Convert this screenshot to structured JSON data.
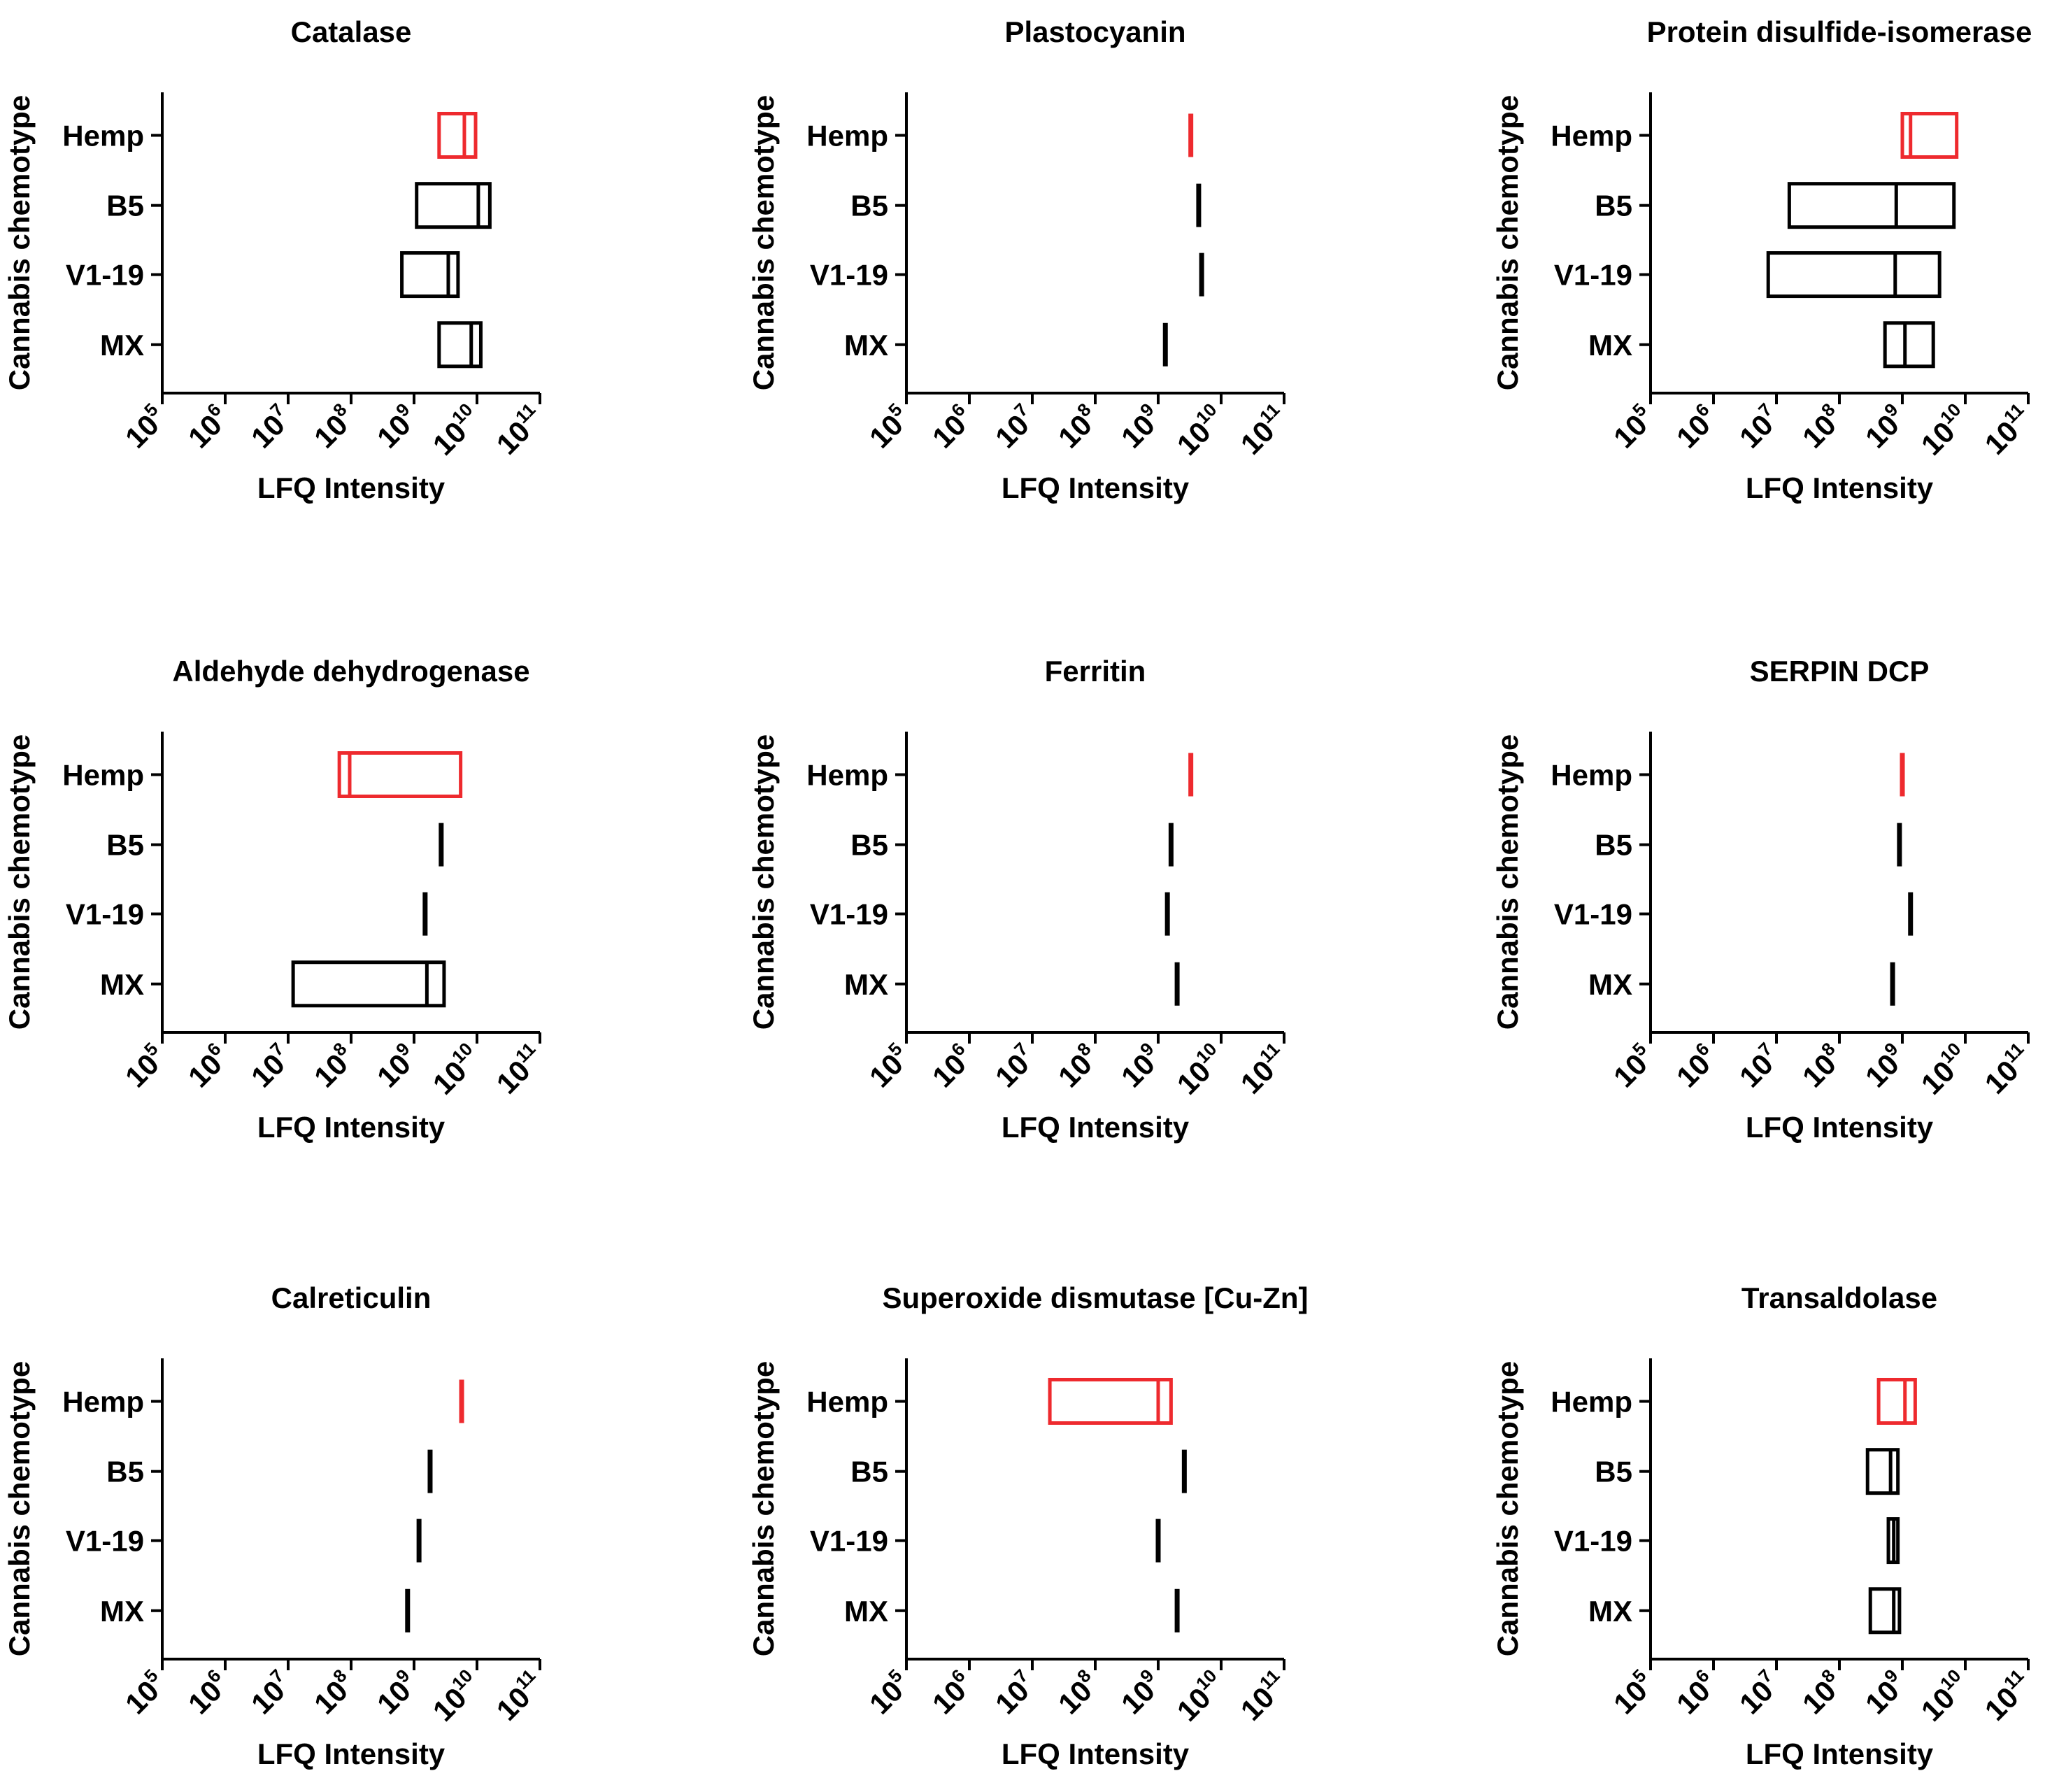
{
  "figure": {
    "x_axis_label": "LFQ Intensity",
    "y_axis_label": "Cannabis chemotype",
    "categories": [
      "Hemp",
      "B5",
      "V1-19",
      "MX"
    ],
    "tick_base": "10",
    "tick_exponents": [
      "5",
      "6",
      "7",
      "8",
      "9",
      "10",
      "11"
    ],
    "colors": {
      "Hemp": "#ee2a2e",
      "other": "#000000"
    }
  },
  "chart_data": [
    {
      "type": "box",
      "title": "Catalase",
      "xscale": "log",
      "xlim": [
        100000,
        100000000000
      ],
      "xlabel": "LFQ Intensity",
      "ylabel": "Cannabis chemotype",
      "categories": [
        "Hemp",
        "B5",
        "V1-19",
        "MX"
      ],
      "boxes": [
        {
          "category": "Hemp",
          "min": 2500000000,
          "median": 6300000000,
          "max": 9500000000
        },
        {
          "category": "B5",
          "min": 1100000000,
          "median": 10500000000,
          "max": 16000000000
        },
        {
          "category": "V1-19",
          "min": 640000000,
          "median": 3500000000,
          "max": 5000000000
        },
        {
          "category": "MX",
          "min": 2500000000,
          "median": 8100000000,
          "max": 11500000000
        }
      ]
    },
    {
      "type": "box",
      "title": "Plastocyanin",
      "xscale": "log",
      "xlim": [
        100000,
        100000000000
      ],
      "xlabel": "LFQ Intensity",
      "ylabel": "Cannabis chemotype",
      "categories": [
        "Hemp",
        "B5",
        "V1-19",
        "MX"
      ],
      "boxes": [
        {
          "category": "Hemp",
          "min": 3300000000,
          "median": 3300000000,
          "max": 3300000000
        },
        {
          "category": "B5",
          "min": 4400000000,
          "median": 4400000000,
          "max": 4400000000
        },
        {
          "category": "V1-19",
          "min": 4900000000,
          "median": 4900000000,
          "max": 4900000000
        },
        {
          "category": "MX",
          "min": 1300000000,
          "median": 1300000000,
          "max": 1300000000
        }
      ]
    },
    {
      "type": "box",
      "title": "Protein disulfide-isomerase",
      "xscale": "log",
      "xlim": [
        100000,
        100000000000
      ],
      "xlabel": "LFQ Intensity",
      "ylabel": "Cannabis chemotype",
      "categories": [
        "Hemp",
        "B5",
        "V1-19",
        "MX"
      ],
      "boxes": [
        {
          "category": "Hemp",
          "min": 1000000000,
          "median": 1350000000,
          "max": 7300000000
        },
        {
          "category": "B5",
          "min": 16000000,
          "median": 800000000,
          "max": 6600000000
        },
        {
          "category": "V1-19",
          "min": 7400000,
          "median": 770000000,
          "max": 3900000000
        },
        {
          "category": "MX",
          "min": 530000000,
          "median": 1100000000,
          "max": 3100000000
        }
      ]
    },
    {
      "type": "box",
      "title": "Aldehyde dehydrogenase",
      "xscale": "log",
      "xlim": [
        100000,
        100000000000
      ],
      "xlabel": "LFQ Intensity",
      "ylabel": "Cannabis chemotype",
      "categories": [
        "Hemp",
        "B5",
        "V1-19",
        "MX"
      ],
      "boxes": [
        {
          "category": "Hemp",
          "min": 65000000,
          "median": 95000000,
          "max": 5500000000
        },
        {
          "category": "B5",
          "min": 2700000000,
          "median": 2700000000,
          "max": 2700000000
        },
        {
          "category": "V1-19",
          "min": 1500000000,
          "median": 1500000000,
          "max": 1500000000
        },
        {
          "category": "MX",
          "min": 12000000,
          "median": 1600000000,
          "max": 3000000000
        }
      ]
    },
    {
      "type": "box",
      "title": "Ferritin",
      "xscale": "log",
      "xlim": [
        100000,
        100000000000
      ],
      "xlabel": "LFQ Intensity",
      "ylabel": "Cannabis chemotype",
      "categories": [
        "Hemp",
        "B5",
        "V1-19",
        "MX"
      ],
      "boxes": [
        {
          "category": "Hemp",
          "min": 3300000000,
          "median": 3300000000,
          "max": 3300000000
        },
        {
          "category": "B5",
          "min": 1600000000,
          "median": 1600000000,
          "max": 1600000000
        },
        {
          "category": "V1-19",
          "min": 1400000000,
          "median": 1400000000,
          "max": 1400000000
        },
        {
          "category": "MX",
          "min": 2000000000,
          "median": 2000000000,
          "max": 2000000000
        }
      ]
    },
    {
      "type": "box",
      "title": "SERPIN DCP",
      "xscale": "log",
      "xlim": [
        100000,
        100000000000
      ],
      "xlabel": "LFQ Intensity",
      "ylabel": "Cannabis chemotype",
      "categories": [
        "Hemp",
        "B5",
        "V1-19",
        "MX"
      ],
      "boxes": [
        {
          "category": "Hemp",
          "min": 1000000000,
          "median": 1000000000,
          "max": 1000000000
        },
        {
          "category": "B5",
          "min": 900000000,
          "median": 900000000,
          "max": 900000000
        },
        {
          "category": "V1-19",
          "min": 1350000000,
          "median": 1350000000,
          "max": 1350000000
        },
        {
          "category": "MX",
          "min": 700000000,
          "median": 700000000,
          "max": 700000000
        }
      ]
    },
    {
      "type": "box",
      "title": "Calreticulin",
      "xscale": "log",
      "xlim": [
        100000,
        100000000000
      ],
      "xlabel": "LFQ Intensity",
      "ylabel": "Cannabis chemotype",
      "categories": [
        "Hemp",
        "B5",
        "V1-19",
        "MX"
      ],
      "boxes": [
        {
          "category": "Hemp",
          "min": 5700000000,
          "median": 5700000000,
          "max": 5700000000
        },
        {
          "category": "B5",
          "min": 1800000000,
          "median": 1800000000,
          "max": 1800000000
        },
        {
          "category": "V1-19",
          "min": 1200000000,
          "median": 1200000000,
          "max": 1200000000
        },
        {
          "category": "MX",
          "min": 790000000,
          "median": 790000000,
          "max": 790000000
        }
      ]
    },
    {
      "type": "box",
      "title": "Superoxide dismutase [Cu-Zn]",
      "xscale": "log",
      "xlim": [
        100000,
        100000000000
      ],
      "xlabel": "LFQ Intensity",
      "ylabel": "Cannabis chemotype",
      "categories": [
        "Hemp",
        "B5",
        "V1-19",
        "MX"
      ],
      "boxes": [
        {
          "category": "Hemp",
          "min": 19000000,
          "median": 1000000000,
          "max": 1600000000
        },
        {
          "category": "B5",
          "min": 2600000000,
          "median": 2600000000,
          "max": 2600000000
        },
        {
          "category": "V1-19",
          "min": 1000000000,
          "median": 1000000000,
          "max": 1000000000
        },
        {
          "category": "MX",
          "min": 2000000000,
          "median": 2000000000,
          "max": 2000000000
        }
      ]
    },
    {
      "type": "box",
      "title": "Transaldolase",
      "xscale": "log",
      "xlim": [
        100000,
        100000000000
      ],
      "xlabel": "LFQ Intensity",
      "ylabel": "Cannabis chemotype",
      "categories": [
        "Hemp",
        "B5",
        "V1-19",
        "MX"
      ],
      "boxes": [
        {
          "category": "Hemp",
          "min": 420000000,
          "median": 1100000000,
          "max": 1600000000
        },
        {
          "category": "B5",
          "min": 280000000,
          "median": 650000000,
          "max": 850000000
        },
        {
          "category": "V1-19",
          "min": 600000000,
          "median": 730000000,
          "max": 850000000
        },
        {
          "category": "MX",
          "min": 310000000,
          "median": 730000000,
          "max": 900000000
        }
      ]
    }
  ]
}
